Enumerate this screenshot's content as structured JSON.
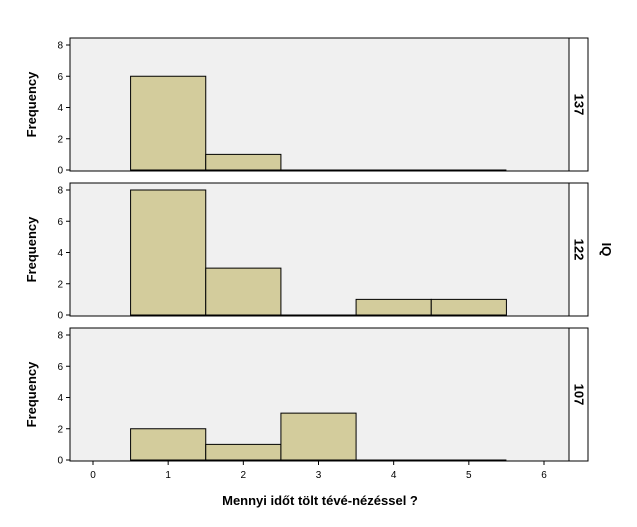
{
  "chart_data": {
    "type": "bar",
    "subtype": "histogram-panel",
    "facet_label": "IQ",
    "xlabel": "Mennyi időt tölt tévé-nézéssel ?",
    "ylabel": "Frequency",
    "xlim": [
      0,
      6
    ],
    "ylim": [
      0,
      8
    ],
    "x_ticks": [
      "0",
      "1",
      "2",
      "3",
      "4",
      "5",
      "6"
    ],
    "y_ticks": [
      "0",
      "2",
      "4",
      "6",
      "8"
    ],
    "bin_width": 1,
    "bar_fill": "#d3cc9c",
    "bar_stroke": "#000000",
    "panel_background": "#f0f0f0",
    "grid": false,
    "panels": [
      {
        "label": "137",
        "bins": [
          1,
          2,
          3,
          4,
          5
        ],
        "values": [
          6,
          1,
          0,
          0,
          0
        ]
      },
      {
        "label": "122",
        "bins": [
          1,
          2,
          3,
          4,
          5
        ],
        "values": [
          8,
          3,
          0,
          1,
          1
        ]
      },
      {
        "label": "107",
        "bins": [
          1,
          2,
          3,
          4,
          5
        ],
        "values": [
          2,
          1,
          3,
          0,
          0
        ]
      }
    ]
  }
}
